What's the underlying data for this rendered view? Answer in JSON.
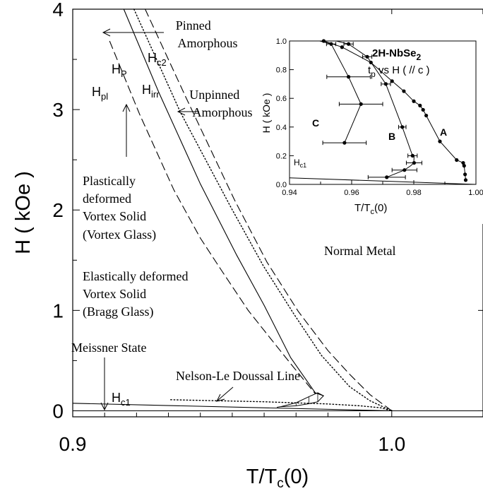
{
  "chart_data": {
    "type": "line",
    "main": {
      "xlabel": "T/T",
      "xlabel_sub": "c",
      "xlabel_tail": "(0)",
      "ylabel": "H ( kOe )",
      "xlim": [
        0.9,
        1.0286
      ],
      "ylim": [
        -0.06,
        4.0
      ],
      "xticks": [
        {
          "v": 0.9,
          "label": "0.9"
        },
        {
          "v": 1.0,
          "label": "1.0"
        }
      ],
      "yticks": [
        {
          "v": 0,
          "label": "0"
        },
        {
          "v": 1,
          "label": "1"
        },
        {
          "v": 2,
          "label": "2"
        },
        {
          "v": 3,
          "label": "3"
        },
        {
          "v": 4,
          "label": "4"
        }
      ],
      "series": [
        {
          "name": "H_c2",
          "style": "dashed",
          "x": [
            0.9227,
            0.9355,
            0.9507,
            0.9609,
            0.9707,
            0.98,
            0.9869,
            0.9932,
            1.0
          ],
          "y": [
            4.0,
            3.12,
            2.1,
            1.48,
            0.99,
            0.6,
            0.36,
            0.16,
            0.0
          ]
        },
        {
          "name": "H_irr",
          "style": "dotted",
          "x": [
            0.9192,
            0.9338,
            0.9497,
            0.9598,
            0.9694,
            0.978,
            0.9868,
            0.9932,
            1.0
          ],
          "y": [
            4.0,
            2.97,
            2.02,
            1.44,
            0.96,
            0.55,
            0.24,
            0.1,
            0.0
          ]
        },
        {
          "name": "H_p",
          "style": "solid",
          "x": [
            0.916,
            0.927,
            0.94,
            0.9514,
            0.96,
            0.9683,
            0.976,
            0.9786
          ],
          "y": [
            4.0,
            3.17,
            2.26,
            1.55,
            1.05,
            0.53,
            0.18,
            0.15
          ]
        },
        {
          "name": "H_pl",
          "style": "dashed",
          "x": [
            0.9116,
            0.921,
            0.9317,
            0.94,
            0.9466,
            0.955,
            0.962,
            0.9688,
            0.976
          ],
          "y": [
            3.68,
            2.95,
            2.2,
            1.72,
            1.4,
            1.0,
            0.72,
            0.45,
            0.17
          ]
        },
        {
          "name": "H_c1",
          "style": "solid",
          "x": [
            0.9,
            1.0
          ],
          "y": [
            0.075,
            0.0
          ]
        },
        {
          "name": "Nelson-Le Doussal Line",
          "style": "dotted",
          "x": [
            0.9307,
            0.96,
            0.98,
            0.99,
            0.9965,
            1.0
          ],
          "y": [
            0.11,
            0.09,
            0.068,
            0.05,
            0.03,
            0.0
          ]
        },
        {
          "name": "Baseline",
          "style": "solid",
          "x": [
            0.9,
            1.0286
          ],
          "y": [
            0.0,
            0.0
          ]
        }
      ],
      "peak_region": {
        "left_x": 0.964,
        "left_y": 0.035,
        "x": [
          0.965,
          0.97,
          0.974,
          0.9768,
          0.9786
        ],
        "upper": [
          0.04,
          0.08,
          0.14,
          0.18,
          0.15
        ],
        "lower": [
          0.04,
          0.05,
          0.07,
          0.09,
          0.15
        ]
      },
      "annotations": {
        "pinned": [
          "Pinned",
          "Amorphous"
        ],
        "unpinned": [
          "Unpinned",
          "Amorphous"
        ],
        "plastic": [
          "Plastically",
          "deformed",
          "Vortex Solid",
          "(Vortex Glass)"
        ],
        "elastic": [
          "Elastically deformed",
          "Vortex Solid",
          "(Bragg Glass)"
        ],
        "normal": "Normal Metal",
        "meissner": "Meissner State",
        "nelson": "Nelson-Le Doussal Line",
        "hc2": {
          "main": "H",
          "sub": "c2"
        },
        "hp": {
          "main": "H",
          "sub": "P"
        },
        "hirr": {
          "main": "H",
          "sub": "irr"
        },
        "hpl": {
          "main": "H",
          "sub": "pl"
        },
        "hc1": {
          "main": "H",
          "sub": "c1"
        }
      }
    },
    "inset": {
      "title_main": "2H-NbSe",
      "title_sub": "2",
      "subtitle_main": "t",
      "subtitle_sub": "p",
      "subtitle_tail": " vs H ( // c )",
      "xlabel": "T/T",
      "xlabel_sub": "c",
      "xlabel_tail": "(0)",
      "ylabel": "H ( kOe )",
      "xlim": [
        0.94,
        1.0
      ],
      "ylim": [
        0.0,
        1.0
      ],
      "xticks": [
        {
          "v": 0.94,
          "label": "0.94"
        },
        {
          "v": 0.96,
          "label": "0.96"
        },
        {
          "v": 0.98,
          "label": "0.98"
        },
        {
          "v": 1.0,
          "label": "1.00"
        }
      ],
      "yticks": [
        {
          "v": 0.0,
          "label": "0.0"
        },
        {
          "v": 0.2,
          "label": "0.2"
        },
        {
          "v": 0.4,
          "label": "0.4"
        },
        {
          "v": 0.6,
          "label": "0.6"
        },
        {
          "v": 0.8,
          "label": "0.8"
        },
        {
          "v": 1.0,
          "label": "1.0"
        }
      ],
      "series": [
        {
          "name": "A",
          "x": [
            0.951,
            0.9569,
            0.9662,
            0.973,
            0.9768,
            0.98,
            0.982,
            0.983,
            0.984,
            0.9884,
            0.9938,
            0.9959,
            0.9962,
            0.9965,
            0.9967
          ],
          "y": [
            1.0,
            0.957,
            0.85,
            0.72,
            0.65,
            0.58,
            0.55,
            0.52,
            0.48,
            0.3,
            0.17,
            0.15,
            0.13,
            0.07,
            0.03
          ]
        },
        {
          "name": "B",
          "x": [
            0.955,
            0.959,
            0.965,
            0.971,
            0.9763,
            0.9796,
            0.9801,
            0.98,
            0.979,
            0.977,
            0.9713
          ],
          "y": [
            1.0,
            0.979,
            0.89,
            0.7,
            0.4,
            0.2,
            0.2,
            0.15,
            0.13,
            0.1,
            0.05
          ]
        },
        {
          "name": "C",
          "x": [
            0.9497,
            0.9534,
            0.959,
            0.963,
            0.9577
          ],
          "y": [
            1.0,
            0.979,
            0.75,
            0.56,
            0.29
          ]
        },
        {
          "name": "H_c1",
          "x": [
            0.94,
            1.0
          ],
          "y": [
            0.046,
            0.0
          ]
        }
      ],
      "markers_A": [
        [
          0.951,
          1.0
        ],
        [
          0.9569,
          0.957
        ],
        [
          0.9662,
          0.85
        ],
        [
          0.973,
          0.72
        ],
        [
          0.9768,
          0.65
        ],
        [
          0.98,
          0.58
        ],
        [
          0.982,
          0.55
        ],
        [
          0.983,
          0.52
        ],
        [
          0.984,
          0.48
        ],
        [
          0.9884,
          0.3
        ],
        [
          0.9938,
          0.17
        ],
        [
          0.9959,
          0.15
        ],
        [
          0.9962,
          0.13
        ],
        [
          0.9965,
          0.07
        ],
        [
          0.9967,
          0.03
        ]
      ],
      "markers_B": [
        [
          0.959,
          0.979
        ],
        [
          0.965,
          0.89
        ],
        [
          0.971,
          0.7
        ],
        [
          0.9763,
          0.4
        ],
        [
          0.9796,
          0.2
        ],
        [
          0.9801,
          0.15
        ],
        [
          0.977,
          0.1
        ],
        [
          0.9713,
          0.05
        ]
      ],
      "markers_C": [
        [
          0.9534,
          0.979
        ],
        [
          0.959,
          0.75
        ],
        [
          0.963,
          0.56
        ],
        [
          0.9577,
          0.29
        ]
      ],
      "errorbars": [
        {
          "x": 0.9534,
          "y": 0.979,
          "xerr": 0.0015
        },
        {
          "x": 0.959,
          "y": 0.75,
          "xerr": 0.007
        },
        {
          "x": 0.963,
          "y": 0.56,
          "xerr": 0.007
        },
        {
          "x": 0.9577,
          "y": 0.29,
          "xerr": 0.007
        },
        {
          "x": 0.959,
          "y": 0.979,
          "xerr": 0.0015
        },
        {
          "x": 0.965,
          "y": 0.89,
          "xerr": 0.0015
        },
        {
          "x": 0.971,
          "y": 0.7,
          "xerr": 0.0015
        },
        {
          "x": 0.9763,
          "y": 0.4,
          "xerr": 0.0012
        },
        {
          "x": 0.9796,
          "y": 0.2,
          "xerr": 0.0015
        },
        {
          "x": 0.9801,
          "y": 0.15,
          "xerr": 0.0025
        },
        {
          "x": 0.977,
          "y": 0.1,
          "xerr": 0.004
        },
        {
          "x": 0.9713,
          "y": 0.05,
          "xerr": 0.006
        }
      ],
      "labels": {
        "A": "A",
        "B": "B",
        "C": "C"
      },
      "hc1": {
        "main": "H",
        "sub": "c1"
      }
    }
  }
}
